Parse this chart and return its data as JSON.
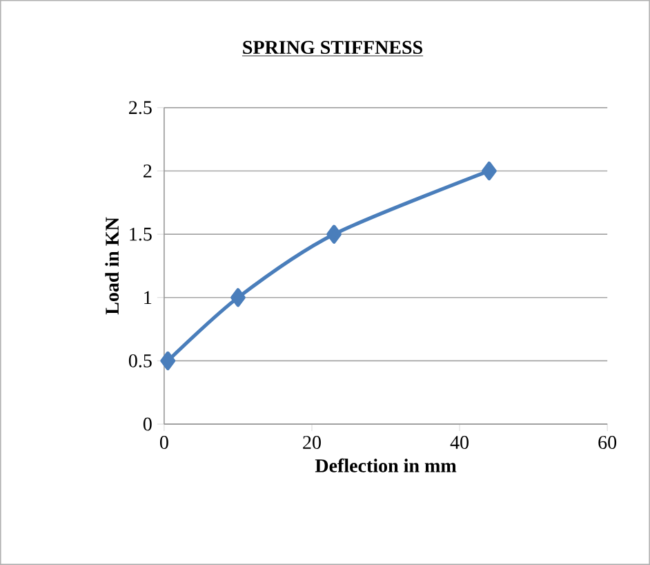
{
  "chart_data": {
    "type": "line",
    "title": "SPRING STIFFNESS",
    "xlabel": "Deflection in mm",
    "ylabel": "Load in KN",
    "x": [
      0.5,
      10,
      23,
      44
    ],
    "series": [
      {
        "color": "#4a7ebb",
        "values": [
          0.5,
          1,
          1.5,
          2
        ]
      }
    ],
    "xlim": [
      0,
      60
    ],
    "xticks": [
      0,
      20,
      40,
      60
    ],
    "ylim": [
      0,
      2.5
    ],
    "yticks": [
      0,
      0.5,
      1,
      1.5,
      2,
      2.5
    ],
    "grid": "y",
    "marker": "diamond",
    "line_style": "solid"
  }
}
